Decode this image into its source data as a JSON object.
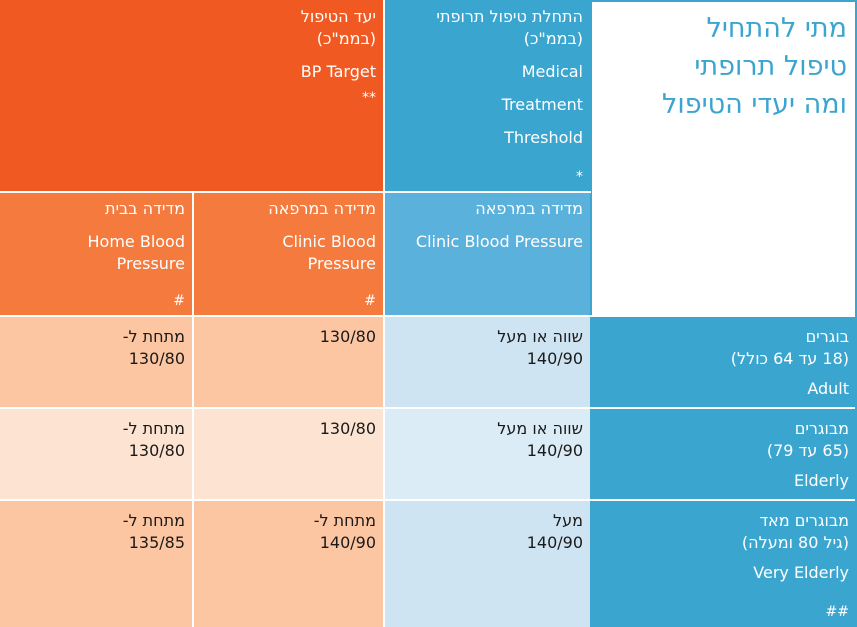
{
  "title": {
    "line1": "מתי להתחיל",
    "line2": "טיפול תרופתי",
    "line3": "ומה יעדי הטיפול"
  },
  "threshold": {
    "he_line1": "התחלת טיפול תרופתי",
    "he_line2": "(בממ\"כ)",
    "en_line1": "Medical",
    "en_line2": "Treatment",
    "en_line3": "Threshold",
    "mark": "*"
  },
  "target": {
    "he_line1": "יעד הטיפול",
    "he_line2": "(בממ\"כ)",
    "en_line1": "BP Target",
    "mark": "**"
  },
  "sub_clinic_threshold": {
    "he": "מדידה במרפאה",
    "en": "Clinic Blood Pressure"
  },
  "sub_clinic_target": {
    "he": "מדידה במרפאה",
    "en_line1": "Clinic Blood",
    "en_line2": "Pressure",
    "mark": "#"
  },
  "sub_home_target": {
    "he": "מדידה בבית",
    "en_line1": "Home Blood",
    "en_line2": "Pressure",
    "mark": "#"
  },
  "rows": [
    {
      "he": "בוגרים",
      "age": "(18 עד 64 כולל)",
      "en": "Adult",
      "mark": "",
      "threshold_l1": "שווה או מעל",
      "threshold_l2": "140/90",
      "clinic_l1": "130/80",
      "clinic_l2": "",
      "home_l1": "מתחת ל-",
      "home_l2": "130/80"
    },
    {
      "he": "מבוגרים",
      "age": "(65 עד 79)",
      "en": "Elderly",
      "mark": "",
      "threshold_l1": "שווה או מעל",
      "threshold_l2": "140/90",
      "clinic_l1": "130/80",
      "clinic_l2": "",
      "home_l1": "מתחת ל-",
      "home_l2": "130/80"
    },
    {
      "he": "מבוגרים מאד",
      "age": "(גיל 80 ומעלה)",
      "en": "Very Elderly",
      "mark": "##",
      "threshold_l1": "מעל",
      "threshold_l2": "140/90",
      "clinic_l1": "מתחת ל-",
      "clinic_l2": "140/90",
      "home_l1": "מתחת ל-",
      "home_l2": "135/85"
    }
  ],
  "colors": {
    "title_text": "#3ba5cf",
    "header_blue": "#3aa6d0",
    "header_orange": "#f05a22",
    "sub_blue": "#5ab1dc",
    "sub_orange": "#f47a3e",
    "row_label_blue": "#3aa6d0",
    "pale_blue": "#cfe4f2",
    "pale_orange": "#fcc6a2",
    "peach": "#fde3d1"
  }
}
